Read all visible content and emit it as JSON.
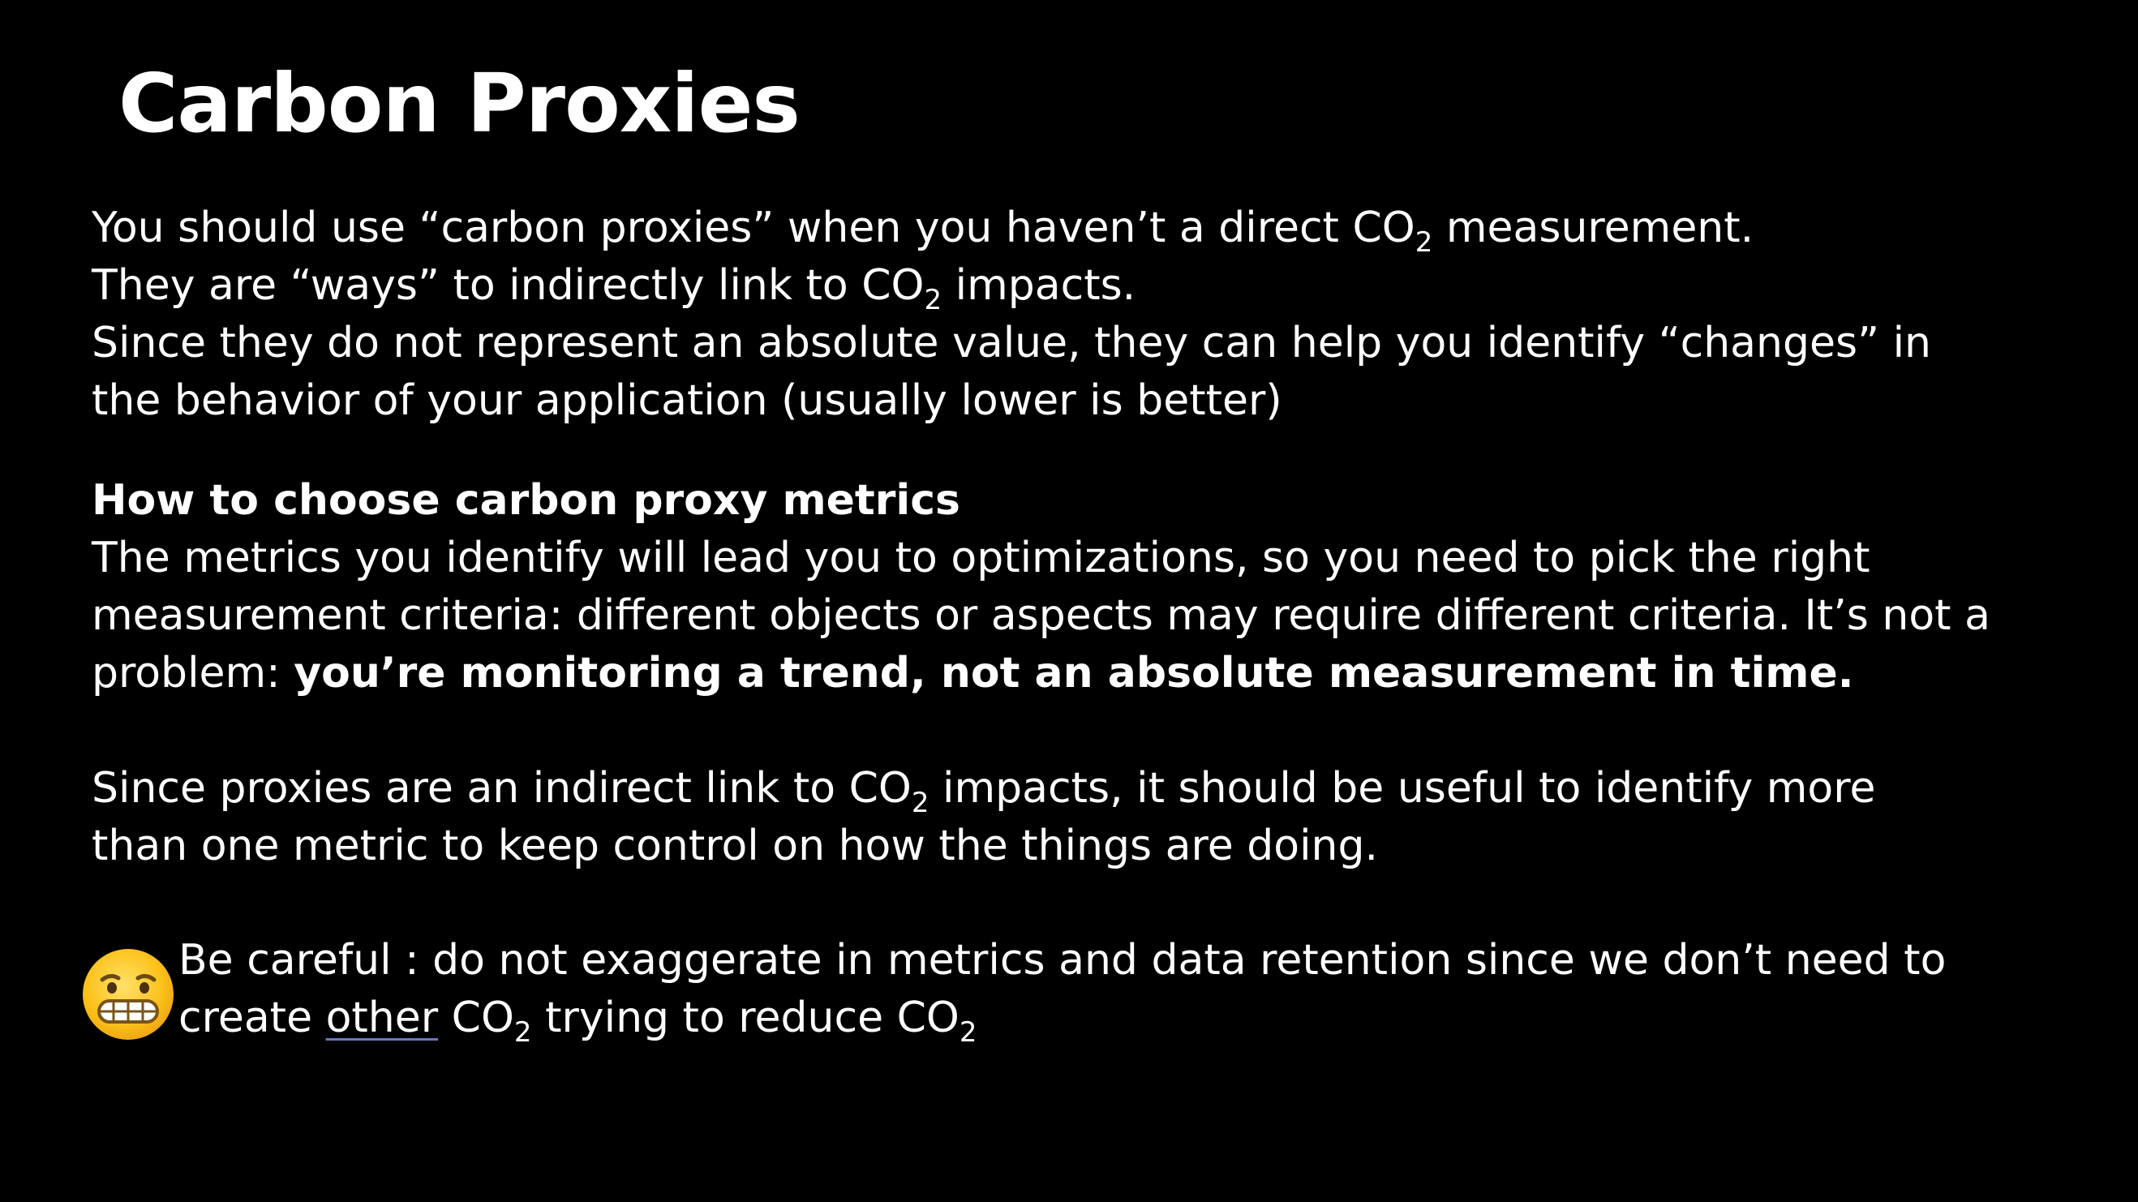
{
  "slide": {
    "title": "Carbon Proxies",
    "intro": {
      "l1_a": "You should use “carbon proxies” when you haven’t a direct CO",
      "l1_sub": "2",
      "l1_b": " measurement.",
      "l2_a": "They are “ways” to indirectly link to CO",
      "l2_sub": "2",
      "l2_b": " impacts.",
      "l3": "Since they do not represent an absolute value, they can help you identify “changes” in",
      "l4": "the behavior of your application (usually lower is better)"
    },
    "choose": {
      "heading": "How to choose carbon proxy metrics",
      "l1": "The metrics you identify will lead you to optimizations, so you need to pick the right",
      "l2": "measurement criteria: different objects or aspects may require different criteria. It’s not a",
      "l3_a": "problem: ",
      "l3_b": "you’re monitoring a trend, not an absolute measurement in time."
    },
    "proxies": {
      "l1_a": "Since proxies are an indirect link to CO",
      "l1_sub": "2",
      "l1_b": " impacts, it should be useful to identify more",
      "l2": "than one metric to keep control on how the things are doing."
    },
    "careful": {
      "icon": "grimacing-face-icon",
      "l1": "Be careful : do not exaggerate in metrics and data retention since we don’t need to",
      "l2_a": "create ",
      "l2_link": "other",
      "l2_b": " CO",
      "l2_sub1": "2",
      "l2_c": " trying to reduce CO",
      "l2_sub2": "2"
    }
  }
}
